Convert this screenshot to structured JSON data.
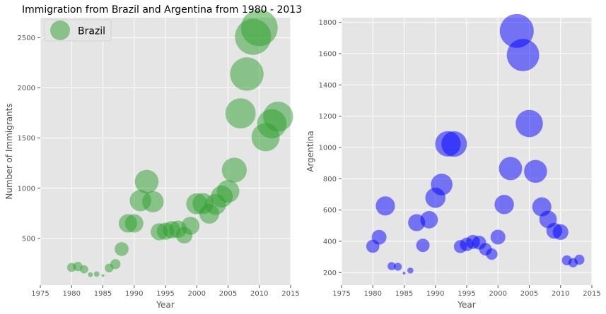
{
  "chart_data": [
    {
      "type": "scatter",
      "title": "Immigration from Brazil and Argentina from 1980 - 2013",
      "xlabel": "Year",
      "ylabel": "Number of Immigrants",
      "xlim": [
        1975,
        2015
      ],
      "ylim": [
        35,
        2700
      ],
      "xticks": [
        "1975",
        "1980",
        "1985",
        "1990",
        "1995",
        "2000",
        "2005",
        "2010",
        "2015"
      ],
      "yticks": [
        "500",
        "1000",
        "1500",
        "2000",
        "2500"
      ],
      "grid": true,
      "legend": {
        "position": "top-left",
        "entries": [
          "Brazil"
        ]
      },
      "color": "#2ca02c",
      "bubble_size_encodes": "normalized value",
      "series": [
        {
          "name": "Brazil",
          "x": [
            1980,
            1981,
            1982,
            1983,
            1984,
            1985,
            1986,
            1987,
            1988,
            1989,
            1990,
            1991,
            1992,
            1993,
            1994,
            1995,
            1996,
            1997,
            1998,
            1999,
            2000,
            2001,
            2002,
            2003,
            2004,
            2005,
            2006,
            2007,
            2008,
            2009,
            2010,
            2011,
            2012,
            2013
          ],
          "y": [
            211,
            220,
            192,
            139,
            145,
            130,
            205,
            244,
            394,
            650,
            650,
            877,
            1066,
            866,
            566,
            572,
            586,
            591,
            531,
            626,
            845,
            847,
            745,
            839,
            917,
            969,
            1181,
            1746,
            2138,
            2509,
            2598,
            1508,
            1642,
            1714
          ]
        }
      ]
    },
    {
      "type": "scatter",
      "title": "",
      "xlabel": "Year",
      "ylabel": "Argentina",
      "xlim": [
        1975,
        2015
      ],
      "ylim": [
        120,
        1830
      ],
      "xticks": [
        "1975",
        "1980",
        "1985",
        "1990",
        "1995",
        "2000",
        "2005",
        "2010",
        "2015"
      ],
      "yticks": [
        "200",
        "400",
        "600",
        "800",
        "1000",
        "1200",
        "1400",
        "1600",
        "1800"
      ],
      "grid": true,
      "color": "#0000ff",
      "series": [
        {
          "name": "",
          "x": [
            1980,
            1981,
            1982,
            1983,
            1984,
            1985,
            1986,
            1987,
            1988,
            1989,
            1990,
            1991,
            1992,
            1993,
            1994,
            1995,
            1996,
            1997,
            1998,
            1999,
            2000,
            2001,
            2002,
            2003,
            2004,
            2005,
            2006,
            2007,
            2008,
            2009,
            2010,
            2011,
            2012,
            2013
          ],
          "y": [
            368,
            426,
            626,
            241,
            237,
            196,
            213,
            519,
            374,
            538,
            678,
            763,
            1023,
            1022,
            366,
            380,
            396,
            391,
            349,
            318,
            427,
            635,
            865,
            1745,
            1591,
            1153,
            847,
            620,
            540,
            467,
            459,
            278,
            263,
            282
          ]
        }
      ]
    }
  ]
}
